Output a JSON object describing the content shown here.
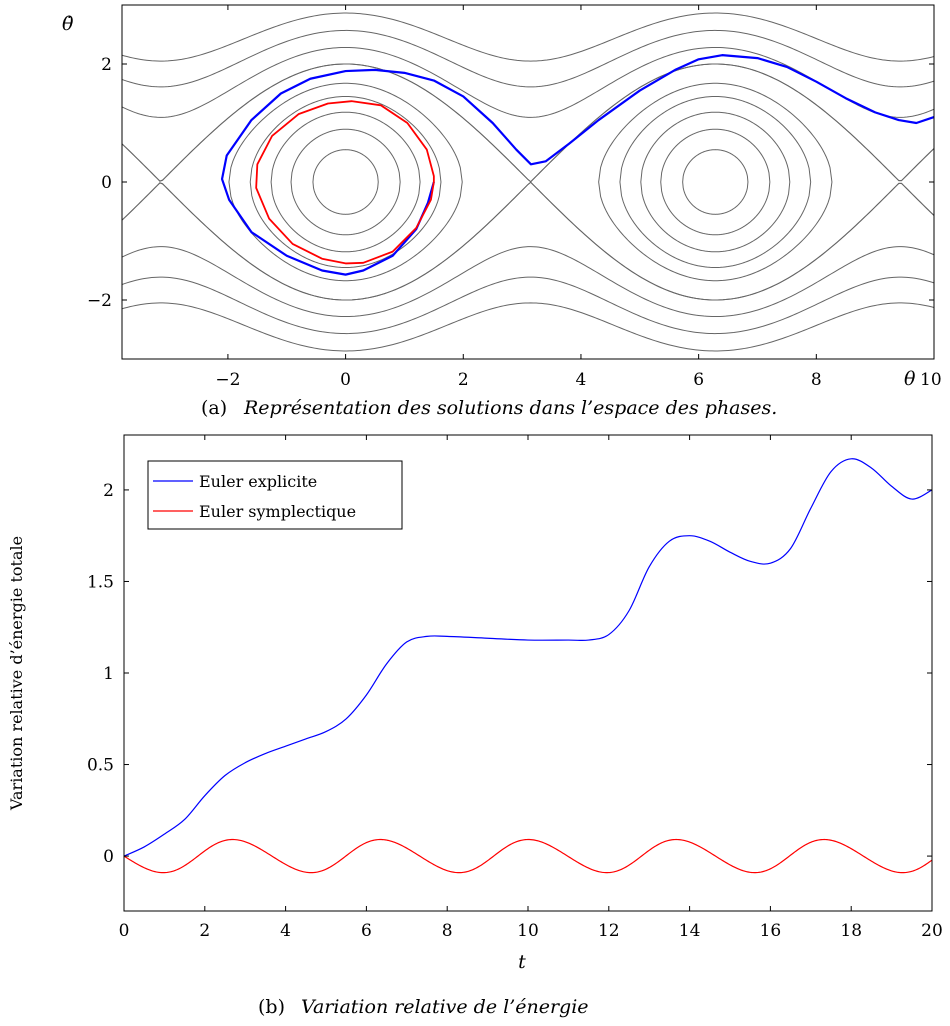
{
  "chart_data": [
    {
      "type": "line",
      "title": "",
      "xlabel": "θ",
      "ylabel": "θ̇",
      "xlim": [
        -3.8,
        10.0
      ],
      "ylim": [
        -3.0,
        3.0
      ],
      "xticks": [
        -2,
        0,
        2,
        4,
        6,
        8,
        10
      ],
      "xtick_labels": [
        "−2",
        "0",
        "2",
        "4",
        "6",
        "8",
        "10"
      ],
      "yticks": [
        -2,
        0,
        2
      ],
      "ytick_labels": [
        "−2",
        "0",
        "2"
      ],
      "background_curves": "phase portrait level sets of E = 0.5·θ̇² − cos θ",
      "energy_levels": [
        -0.85,
        -0.6,
        -0.3,
        0.05,
        0.4,
        1.0,
        1.6,
        2.3,
        3.1
      ],
      "series": [
        {
          "color": "#0000ff",
          "points": [
            [
              1.5,
              0.0
            ],
            [
              1.4,
              -0.35
            ],
            [
              1.2,
              -0.8
            ],
            [
              0.8,
              -1.25
            ],
            [
              0.3,
              -1.5
            ],
            [
              0.0,
              -1.57
            ],
            [
              -0.4,
              -1.5
            ],
            [
              -1.0,
              -1.25
            ],
            [
              -1.6,
              -0.85
            ],
            [
              -1.98,
              -0.3
            ],
            [
              -2.1,
              0.05
            ],
            [
              -2.02,
              0.45
            ],
            [
              -1.6,
              1.05
            ],
            [
              -1.1,
              1.5
            ],
            [
              -0.6,
              1.75
            ],
            [
              0.0,
              1.88
            ],
            [
              0.5,
              1.9
            ],
            [
              1.0,
              1.85
            ],
            [
              1.5,
              1.72
            ],
            [
              2.0,
              1.45
            ],
            [
              2.5,
              1.0
            ],
            [
              2.9,
              0.55
            ],
            [
              3.15,
              0.3
            ],
            [
              3.4,
              0.35
            ],
            [
              3.8,
              0.65
            ],
            [
              4.3,
              1.05
            ],
            [
              5.0,
              1.55
            ],
            [
              5.6,
              1.9
            ],
            [
              6.0,
              2.08
            ],
            [
              6.4,
              2.15
            ],
            [
              7.0,
              2.1
            ],
            [
              7.5,
              1.95
            ],
            [
              8.0,
              1.7
            ],
            [
              8.5,
              1.42
            ],
            [
              9.0,
              1.18
            ],
            [
              9.4,
              1.05
            ],
            [
              9.7,
              1.0
            ],
            [
              10.0,
              1.1
            ]
          ]
        },
        {
          "color": "#ff0000",
          "points": [
            [
              1.5,
              0.0
            ],
            [
              1.45,
              -0.3
            ],
            [
              1.2,
              -0.78
            ],
            [
              0.8,
              -1.18
            ],
            [
              0.3,
              -1.37
            ],
            [
              0.0,
              -1.38
            ],
            [
              -0.4,
              -1.3
            ],
            [
              -0.9,
              -1.05
            ],
            [
              -1.3,
              -0.62
            ],
            [
              -1.52,
              -0.1
            ],
            [
              -1.5,
              0.3
            ],
            [
              -1.25,
              0.78
            ],
            [
              -0.8,
              1.15
            ],
            [
              -0.3,
              1.33
            ],
            [
              0.1,
              1.37
            ],
            [
              0.6,
              1.3
            ],
            [
              1.05,
              1.0
            ],
            [
              1.38,
              0.55
            ],
            [
              1.5,
              0.1
            ],
            [
              1.5,
              0.0
            ]
          ]
        }
      ]
    },
    {
      "type": "line",
      "title": "",
      "xlabel": "t",
      "ylabel": "Variation relative d’énergie totale",
      "xlim": [
        0,
        20
      ],
      "ylim": [
        -0.3,
        2.3
      ],
      "xticks": [
        0,
        2,
        4,
        6,
        8,
        10,
        12,
        14,
        16,
        18,
        20
      ],
      "xtick_labels": [
        "0",
        "2",
        "4",
        "6",
        "8",
        "10",
        "12",
        "14",
        "16",
        "18",
        "20"
      ],
      "yticks": [
        0,
        0.5,
        1,
        1.5,
        2
      ],
      "ytick_labels": [
        "0",
        "0.5",
        "1",
        "1.5",
        "2"
      ],
      "legend_position": "top-left",
      "series": [
        {
          "name": "Euler explicite",
          "color": "#0000ff",
          "x": [
            0,
            0.5,
            1,
            1.5,
            2,
            2.5,
            3,
            3.5,
            4,
            4.5,
            5,
            5.5,
            6,
            6.5,
            7,
            7.5,
            8,
            9,
            10,
            11,
            11.5,
            12,
            12.5,
            13,
            13.5,
            14,
            14.5,
            15,
            15.5,
            16,
            16.5,
            17,
            17.5,
            18,
            18.5,
            19,
            19.5,
            20
          ],
          "values": [
            0,
            0.05,
            0.12,
            0.2,
            0.33,
            0.44,
            0.51,
            0.56,
            0.6,
            0.64,
            0.68,
            0.75,
            0.88,
            1.05,
            1.17,
            1.2,
            1.2,
            1.19,
            1.18,
            1.18,
            1.18,
            1.21,
            1.34,
            1.58,
            1.72,
            1.75,
            1.72,
            1.66,
            1.61,
            1.6,
            1.68,
            1.9,
            2.1,
            2.17,
            2.12,
            2.02,
            1.95,
            2.0
          ]
        },
        {
          "name": "Euler symplectique",
          "color": "#ff0000",
          "period": 3.66,
          "amplitude": 0.09,
          "x": [
            0,
            20
          ]
        }
      ]
    }
  ],
  "captions": {
    "a_prefix": "(a)",
    "a_text": "Représentation des solutions dans l’espace des phases.",
    "b_prefix": "(b)",
    "b_text": "Variation relative de l’énergie"
  }
}
